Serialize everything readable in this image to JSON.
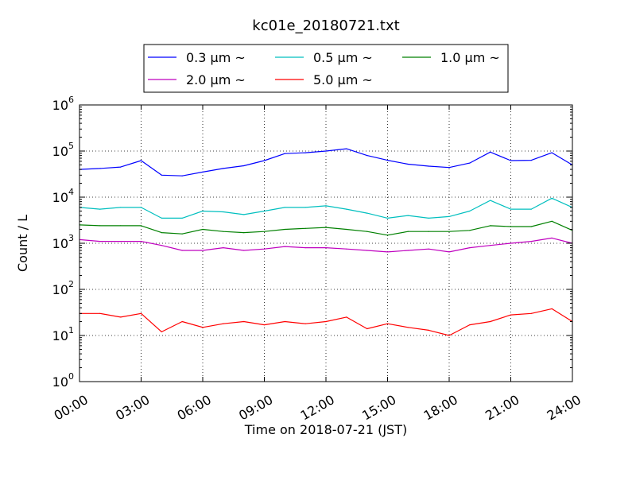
{
  "chart_data": {
    "type": "line",
    "title": "kc01e_20180721.txt",
    "xlabel": "Time on 2018-07-21 (JST)",
    "ylabel": "Count / L",
    "x_unit": "hour",
    "xlim": [
      0,
      24
    ],
    "yscale": "log",
    "ylim": [
      1,
      1000000
    ],
    "grid": true,
    "legend_position": "top-center, outside plot, 3 columns",
    "x_tick_labels": [
      "00:00",
      "03:00",
      "06:00",
      "09:00",
      "12:00",
      "15:00",
      "18:00",
      "21:00",
      "24:00"
    ],
    "y_tick_labels": [
      {
        "base": "10",
        "exp": "0"
      },
      {
        "base": "10",
        "exp": "1"
      },
      {
        "base": "10",
        "exp": "2"
      },
      {
        "base": "10",
        "exp": "3"
      },
      {
        "base": "10",
        "exp": "4"
      },
      {
        "base": "10",
        "exp": "5"
      },
      {
        "base": "10",
        "exp": "6"
      }
    ],
    "x": [
      0,
      1,
      2,
      3,
      4,
      5,
      6,
      7,
      8,
      9,
      10,
      11,
      12,
      13,
      14,
      15,
      16,
      17,
      18,
      19,
      20,
      21,
      22,
      23,
      24
    ],
    "series": [
      {
        "name": "0.3 μm ~",
        "color": "#0000ff",
        "values": [
          40000,
          42000,
          45000,
          62000,
          30000,
          29000,
          35000,
          42000,
          48000,
          62000,
          88000,
          92000,
          100000,
          112000,
          80000,
          63000,
          52000,
          47000,
          44000,
          55000,
          95000,
          62000,
          63000,
          92000,
          50000
        ]
      },
      {
        "name": "0.5 μm ~",
        "color": "#00bfbf",
        "values": [
          6000,
          5500,
          6000,
          6000,
          3500,
          3500,
          5000,
          4800,
          4200,
          5000,
          6000,
          6000,
          6500,
          5500,
          4500,
          3500,
          4000,
          3500,
          3800,
          5000,
          8500,
          5500,
          5500,
          9500,
          6000
        ]
      },
      {
        "name": "1.0 μm ~",
        "color": "#008000",
        "values": [
          2500,
          2400,
          2400,
          2400,
          1700,
          1600,
          2000,
          1800,
          1700,
          1800,
          2000,
          2100,
          2200,
          2000,
          1800,
          1500,
          1800,
          1800,
          1800,
          1900,
          2400,
          2300,
          2300,
          3000,
          1900
        ]
      },
      {
        "name": "2.0 μm ~",
        "color": "#bf00bf",
        "values": [
          1200,
          1100,
          1100,
          1100,
          900,
          700,
          700,
          800,
          700,
          750,
          850,
          800,
          800,
          750,
          700,
          650,
          700,
          750,
          650,
          800,
          900,
          1000,
          1100,
          1300,
          1000
        ]
      },
      {
        "name": "5.0 μm ~",
        "color": "#ff0000",
        "values": [
          30,
          30,
          25,
          30,
          12,
          20,
          15,
          18,
          20,
          17,
          20,
          18,
          20,
          25,
          14,
          18,
          15,
          13,
          10,
          17,
          20,
          28,
          30,
          38,
          20
        ]
      }
    ]
  }
}
